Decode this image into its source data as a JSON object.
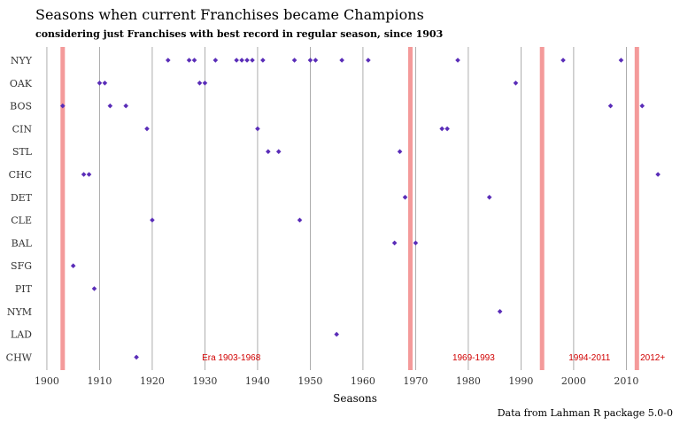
{
  "chart_data": {
    "type": "scatter",
    "title": "Seasons when current Franchises became Champions",
    "subtitle": "considering just Franchises with best record in regular season, since 1903",
    "xlabel": "Seasons",
    "caption": "Data from Lahman R package 5.0-0",
    "xlim": [
      1899,
      2018
    ],
    "xticks": [
      1900,
      1910,
      1920,
      1930,
      1940,
      1950,
      1960,
      1970,
      1980,
      1990,
      2000,
      2010
    ],
    "point_color": "#5a2db8",
    "grid_color": "#999999",
    "era_line_color": "#f49a9a",
    "era_text_color": "#d10000",
    "era_lines": [
      1903,
      1969,
      1994,
      2012
    ],
    "eras": [
      {
        "label": "Era 1903-1968",
        "x": 1935
      },
      {
        "label": "1969-1993",
        "x": 1981
      },
      {
        "label": "1994-2011",
        "x": 2003
      },
      {
        "label": "2012+",
        "x": 2015
      }
    ],
    "categories": [
      "NYY",
      "OAK",
      "BOS",
      "CIN",
      "STL",
      "CHC",
      "DET",
      "CLE",
      "BAL",
      "SFG",
      "PIT",
      "NYM",
      "LAD",
      "CHW"
    ],
    "series": [
      {
        "category": "NYY",
        "years": [
          1923,
          1927,
          1928,
          1932,
          1936,
          1937,
          1938,
          1939,
          1941,
          1947,
          1950,
          1951,
          1956,
          1961,
          1978,
          1998,
          2009
        ]
      },
      {
        "category": "OAK",
        "years": [
          1910,
          1911,
          1929,
          1930,
          1989
        ]
      },
      {
        "category": "BOS",
        "years": [
          1903,
          1912,
          1915,
          2007,
          2013
        ]
      },
      {
        "category": "CIN",
        "years": [
          1919,
          1940,
          1975,
          1976
        ]
      },
      {
        "category": "STL",
        "years": [
          1942,
          1944,
          1967
        ]
      },
      {
        "category": "CHC",
        "years": [
          1907,
          1908,
          2016
        ]
      },
      {
        "category": "DET",
        "years": [
          1968,
          1984
        ]
      },
      {
        "category": "CLE",
        "years": [
          1920,
          1948
        ]
      },
      {
        "category": "BAL",
        "years": [
          1966,
          1970
        ]
      },
      {
        "category": "SFG",
        "years": [
          1905
        ]
      },
      {
        "category": "PIT",
        "years": [
          1909
        ]
      },
      {
        "category": "NYM",
        "years": [
          1986
        ]
      },
      {
        "category": "LAD",
        "years": [
          1955
        ]
      },
      {
        "category": "CHW",
        "years": [
          1917
        ]
      }
    ]
  }
}
